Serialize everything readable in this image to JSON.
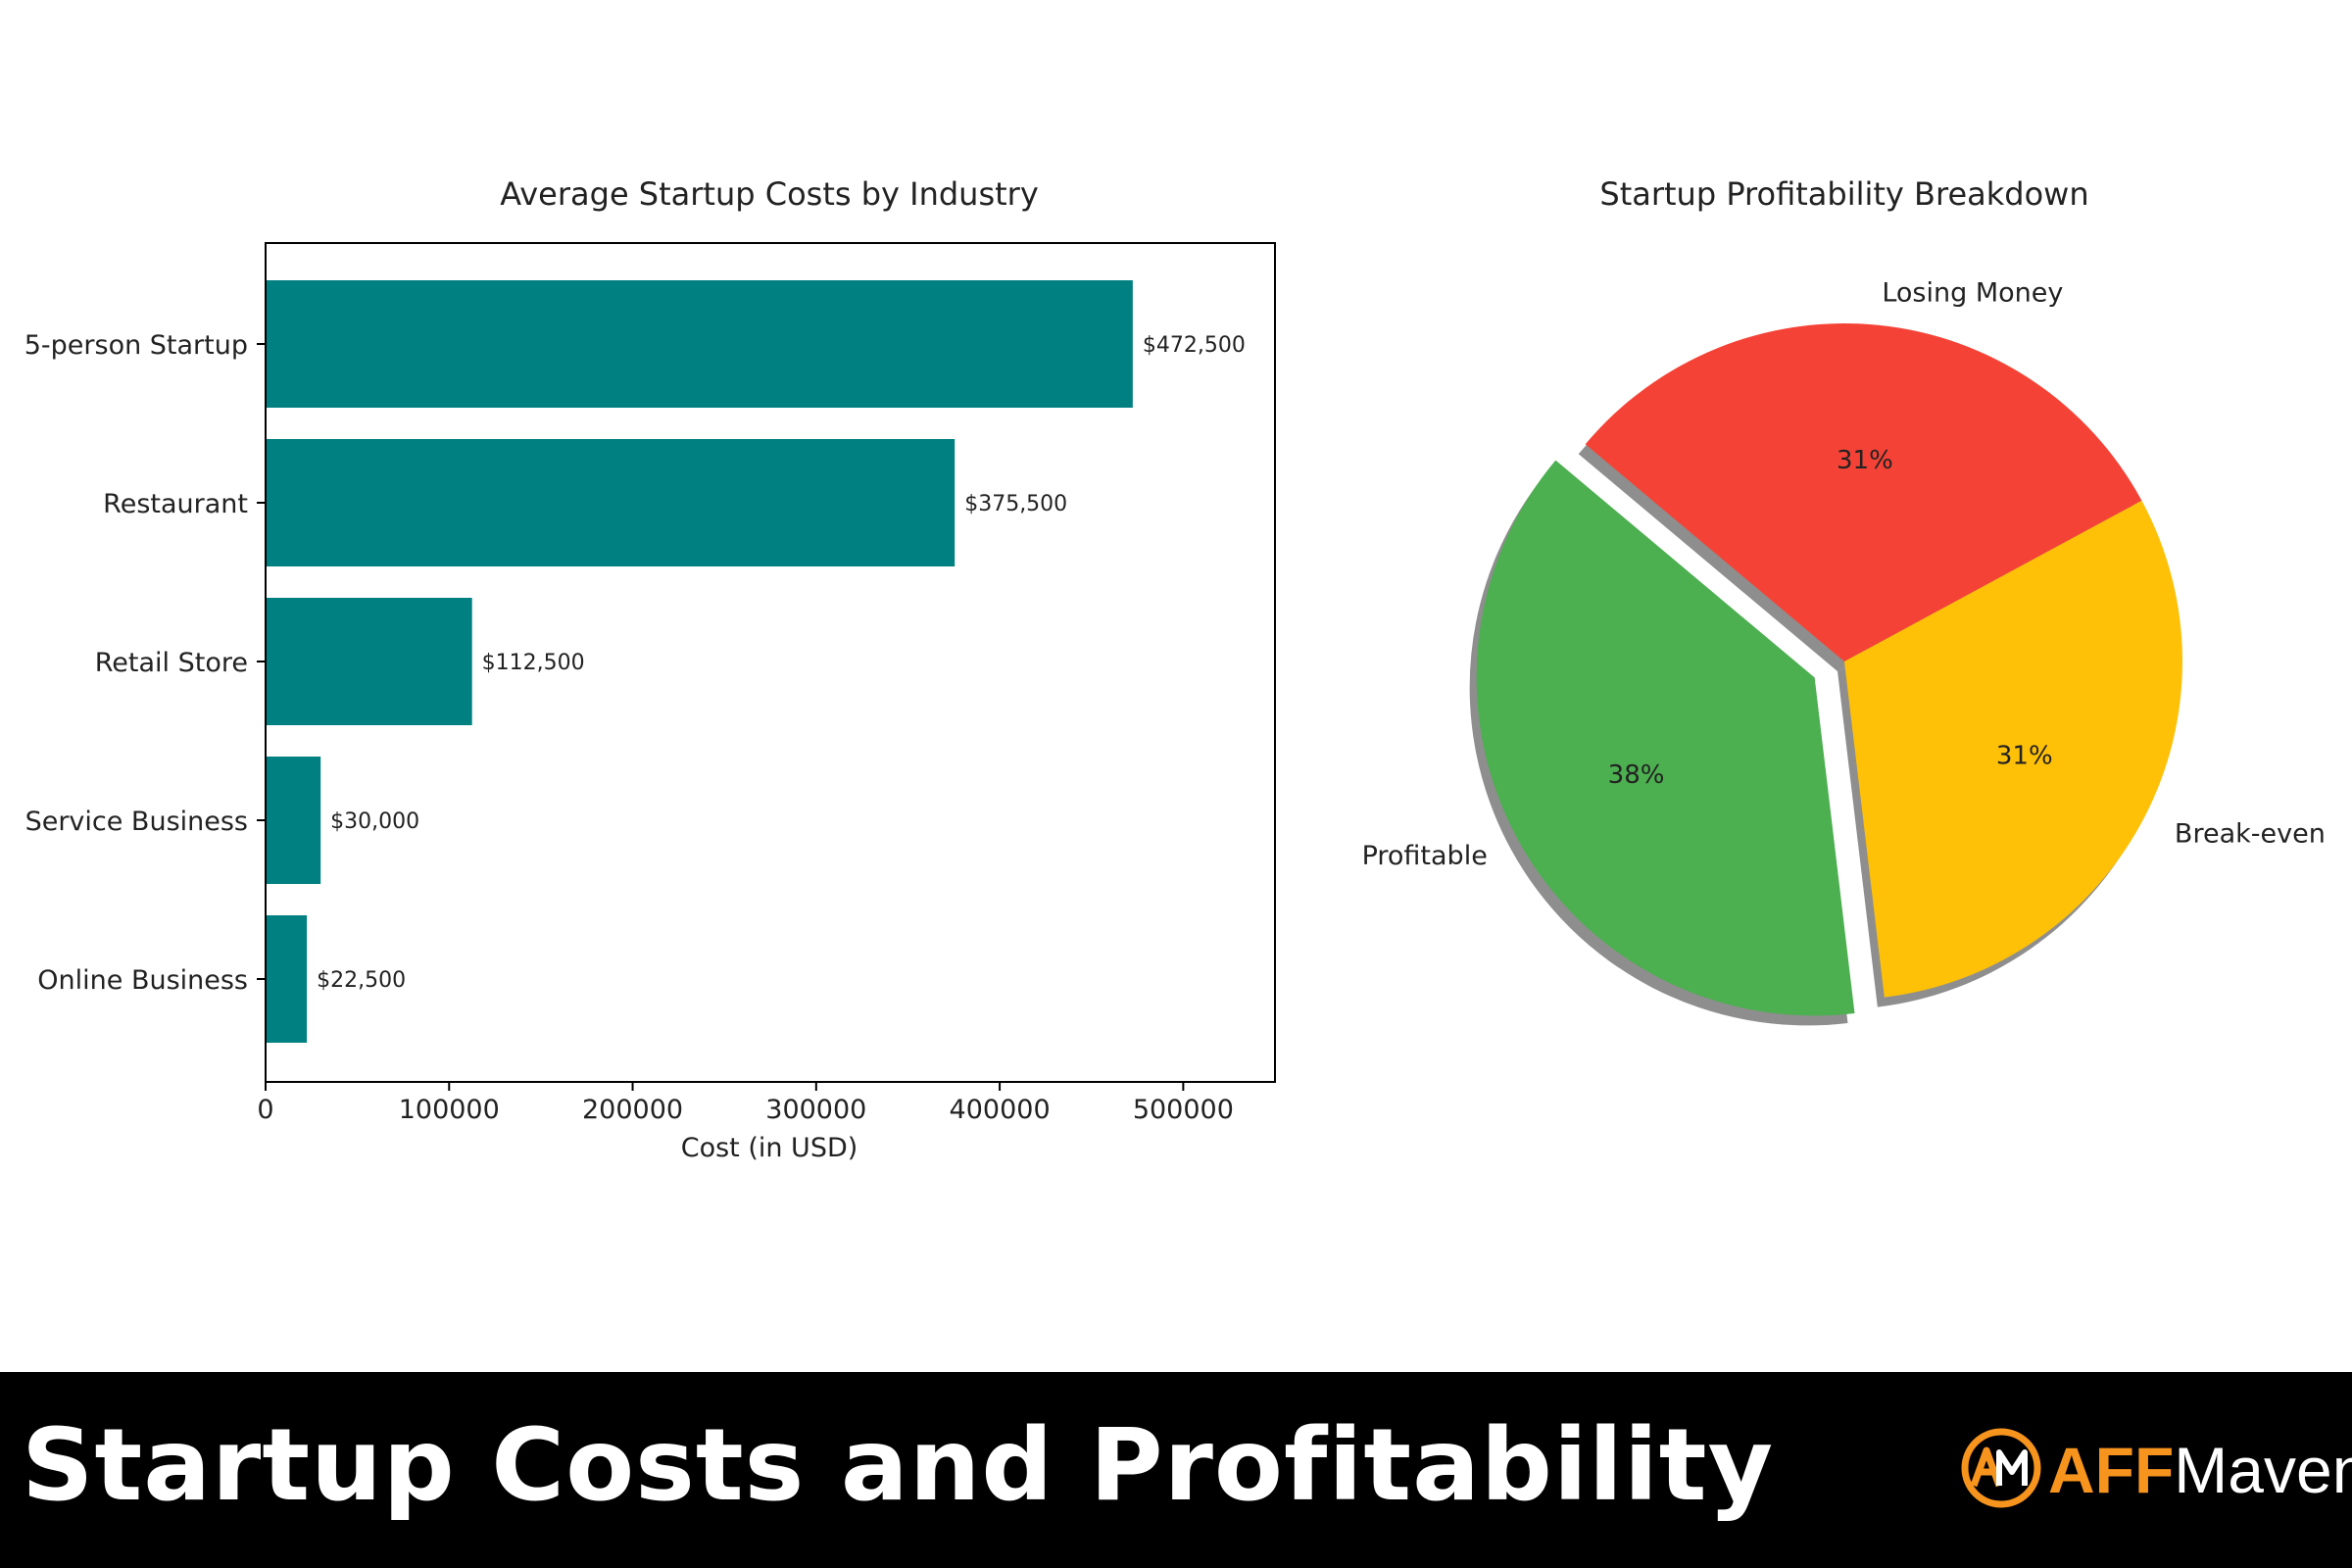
{
  "chart_data": [
    {
      "type": "bar",
      "orientation": "horizontal",
      "title": "Average Startup Costs by Industry",
      "xlabel": "Cost (in USD)",
      "ylabel": "",
      "categories": [
        "5-person Startup",
        "Restaurant",
        "Retail Store",
        "Service Business",
        "Online Business"
      ],
      "values": [
        472500,
        375500,
        112500,
        30000,
        22500
      ],
      "data_labels": [
        "$472,500",
        "$375,500",
        "$112,500",
        "$30,000",
        "$22,500"
      ],
      "xlim": [
        0,
        550000
      ],
      "xticks": [
        0,
        100000,
        200000,
        300000,
        400000,
        500000
      ],
      "xtick_labels": [
        "0",
        "100000",
        "200000",
        "300000",
        "400000",
        "500000"
      ],
      "bar_color": "#008080",
      "grid": false
    },
    {
      "type": "pie",
      "title": "Startup Profitability Breakdown",
      "labels": [
        "Losing Money",
        "Break-even",
        "Profitable"
      ],
      "values": [
        31,
        31,
        38
      ],
      "pct_labels": [
        "31%",
        "31%",
        "38%"
      ],
      "colors": [
        "#f44336",
        "#ffc107",
        "#4caf50"
      ],
      "explode": [
        0,
        0,
        0.1
      ],
      "shadow": true
    }
  ],
  "footer": {
    "title": "Startup Costs and Profitability",
    "brand": {
      "aff": "AFF",
      "maven": "Maven",
      "logo_text": "AM",
      "accent_color": "#f7941d"
    }
  }
}
